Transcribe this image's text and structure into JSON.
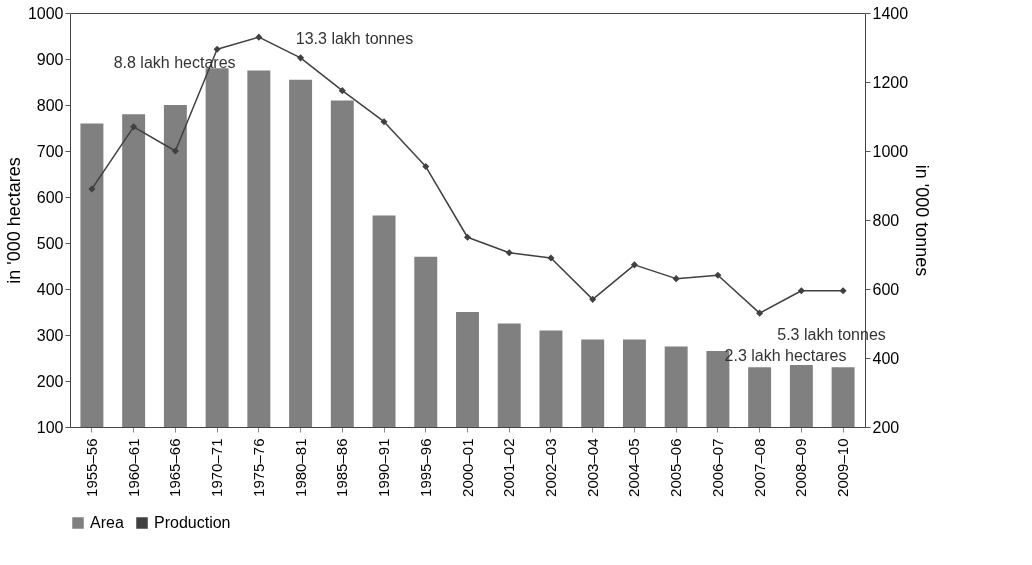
{
  "chart_data": {
    "type": "bar",
    "ylabel": "in '000 hectares",
    "y2label": "in '000 tonnes",
    "categories": [
      "1955–56",
      "1960–61",
      "1965–66",
      "1970–71",
      "1975–76",
      "1980–81",
      "1985–86",
      "1990–91",
      "1995–96",
      "2000–01",
      "2001–02",
      "2002–03",
      "2003–04",
      "2004–05",
      "2005–06",
      "2006–07",
      "2007–08",
      "2008–09",
      "2009–10"
    ],
    "series": [
      {
        "name": "Area",
        "color": "#808080",
        "values": [
          760,
          780,
          800,
          880,
          875,
          855,
          810,
          560,
          470,
          350,
          325,
          310,
          290,
          290,
          275,
          265,
          230,
          235,
          230
        ]
      },
      {
        "name": "Production",
        "type": "line",
        "axis": "y2",
        "color": "#404040",
        "marker": "diamond",
        "values": [
          890,
          1070,
          1000,
          1295,
          1330,
          1270,
          1175,
          1085,
          955,
          750,
          705,
          690,
          570,
          670,
          630,
          640,
          530,
          595,
          595
        ]
      }
    ],
    "ylim": [
      100,
      1000
    ],
    "yticks": [
      100,
      200,
      300,
      400,
      500,
      600,
      700,
      800,
      900,
      {
        "value": 1000,
        "label": "1000"
      }
    ],
    "y2lim": [
      200,
      1400
    ],
    "y2ticks": [
      200,
      400,
      600,
      800,
      {
        "value": 1000,
        "label": "1000"
      },
      {
        "value": 1200,
        "label": "1200"
      },
      {
        "value": 1400,
        "label": "1400"
      }
    ],
    "annotations": [
      "8.8 lakh hectares",
      "13.3 lakh tonnes",
      "2.3 lakh hectares",
      "5.3 lakh tonnes"
    ],
    "legend": "bottom",
    "grid": false
  }
}
